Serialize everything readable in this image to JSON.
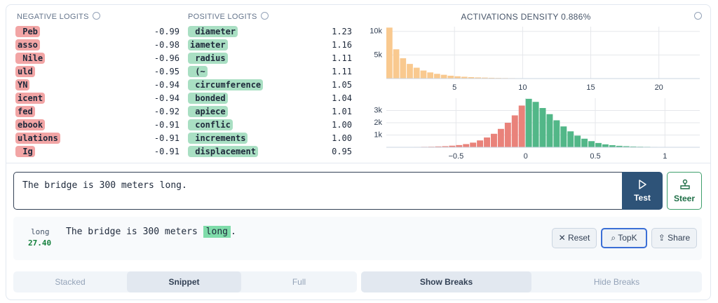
{
  "negative_logits": {
    "title": "NEGATIVE LOGITS",
    "items": [
      {
        "token": " Peb",
        "value": "-0.99"
      },
      {
        "token": "asso",
        "value": "-0.98"
      },
      {
        "token": " Nile",
        "value": "-0.96"
      },
      {
        "token": "uld",
        "value": "-0.95"
      },
      {
        "token": "YN",
        "value": "-0.94"
      },
      {
        "token": "icent",
        "value": "-0.94"
      },
      {
        "token": "fed",
        "value": "-0.92"
      },
      {
        "token": "ebook",
        "value": "-0.91"
      },
      {
        "token": "ulations",
        "value": "-0.91"
      },
      {
        "token": " Ig",
        "value": "-0.91"
      }
    ]
  },
  "positive_logits": {
    "title": "POSITIVE LOGITS",
    "items": [
      {
        "token": " diameter",
        "value": "1.23"
      },
      {
        "token": "iameter",
        "value": "1.16"
      },
      {
        "token": " radius",
        "value": "1.11"
      },
      {
        "token": " (~",
        "value": "1.11"
      },
      {
        "token": " circumference",
        "value": "1.05"
      },
      {
        "token": " bonded",
        "value": "1.04"
      },
      {
        "token": " apiece",
        "value": "1.01"
      },
      {
        "token": " conflic",
        "value": "1.00"
      },
      {
        "token": " increments",
        "value": "1.00"
      },
      {
        "token": " displacement",
        "value": "0.95"
      }
    ]
  },
  "chart_data": [
    {
      "type": "histogram",
      "title": "ACTIVATIONS DENSITY 0.886%",
      "color": "#f9c98f",
      "grid": true,
      "bins": [
        0,
        0.5,
        1,
        1.5,
        2,
        2.5,
        3,
        3.5,
        4,
        4.5,
        5,
        5.5,
        6,
        6.5,
        7,
        7.5,
        8,
        8.5,
        9,
        9.5,
        10,
        10.5,
        11,
        11.5,
        12,
        12.5,
        13,
        13.5,
        14,
        14.5,
        15,
        15.5,
        16,
        16.5,
        17,
        17.5,
        18,
        18.5,
        19,
        19.5,
        20,
        20.5,
        21,
        21.5,
        22,
        22.5,
        23
      ],
      "counts": [
        10800,
        6200,
        4300,
        3100,
        2300,
        1700,
        1300,
        1000,
        800,
        600,
        480,
        380,
        300,
        240,
        200,
        160,
        130,
        110,
        90,
        80,
        70,
        60,
        50,
        45,
        40,
        35,
        30,
        28,
        25,
        22,
        20,
        18,
        16,
        15,
        14,
        13,
        12,
        11,
        10,
        10,
        9,
        9,
        8,
        8,
        7,
        7
      ],
      "xlim": [
        0,
        23
      ],
      "xticks": [
        5,
        10,
        15,
        20
      ],
      "ylim": [
        0,
        11000
      ],
      "yticks": [
        {
          "value": 5000,
          "label": "5k"
        },
        {
          "value": 10000,
          "label": "10k"
        }
      ]
    },
    {
      "type": "histogram",
      "negative_color": "#e9827a",
      "positive_color": "#52b788",
      "grid": true,
      "bins": [
        -1,
        -0.95,
        -0.9,
        -0.85,
        -0.8,
        -0.75,
        -0.7,
        -0.65,
        -0.6,
        -0.55,
        -0.5,
        -0.45,
        -0.4,
        -0.35,
        -0.3,
        -0.25,
        -0.2,
        -0.15,
        -0.1,
        -0.05,
        0,
        0.05,
        0.1,
        0.15,
        0.2,
        0.25,
        0.3,
        0.35,
        0.4,
        0.45,
        0.5,
        0.55,
        0.6,
        0.65,
        0.7,
        0.75,
        0.8,
        0.85,
        0.9,
        0.95,
        1,
        1.05,
        1.1,
        1.15,
        1.2,
        1.25
      ],
      "counts": [
        10,
        15,
        20,
        25,
        30,
        40,
        50,
        70,
        90,
        130,
        180,
        260,
        380,
        560,
        800,
        1100,
        1500,
        2000,
        2600,
        3400,
        3950,
        3700,
        3200,
        2700,
        2200,
        1700,
        1300,
        950,
        700,
        500,
        350,
        240,
        170,
        120,
        90,
        65,
        50,
        40,
        30,
        25,
        20,
        15,
        12,
        10,
        8
      ],
      "xlim": [
        -1,
        1.25
      ],
      "xticks": [
        {
          "value": -0.5,
          "label": "−0.5"
        },
        0,
        0.5,
        1
      ],
      "ylim": [
        0,
        4000
      ],
      "yticks": [
        {
          "value": 1000,
          "label": "1k"
        },
        {
          "value": 2000,
          "label": "2k"
        },
        {
          "value": 3000,
          "label": "3k"
        }
      ]
    }
  ],
  "input": {
    "text": "The bridge is 300 meters long.",
    "test_button": "Test",
    "steer_button": "Steer"
  },
  "result": {
    "token": "long",
    "activation": "27.40",
    "prefix": "The bridge is 300 meters",
    "highlight": "long",
    "suffix": ".",
    "buttons": [
      "Reset",
      "TopK",
      "Share"
    ]
  },
  "tabs": {
    "view": [
      "Stacked",
      "Snippet",
      "Full"
    ],
    "breaks": [
      "Show Breaks",
      "Hide Breaks"
    ]
  }
}
